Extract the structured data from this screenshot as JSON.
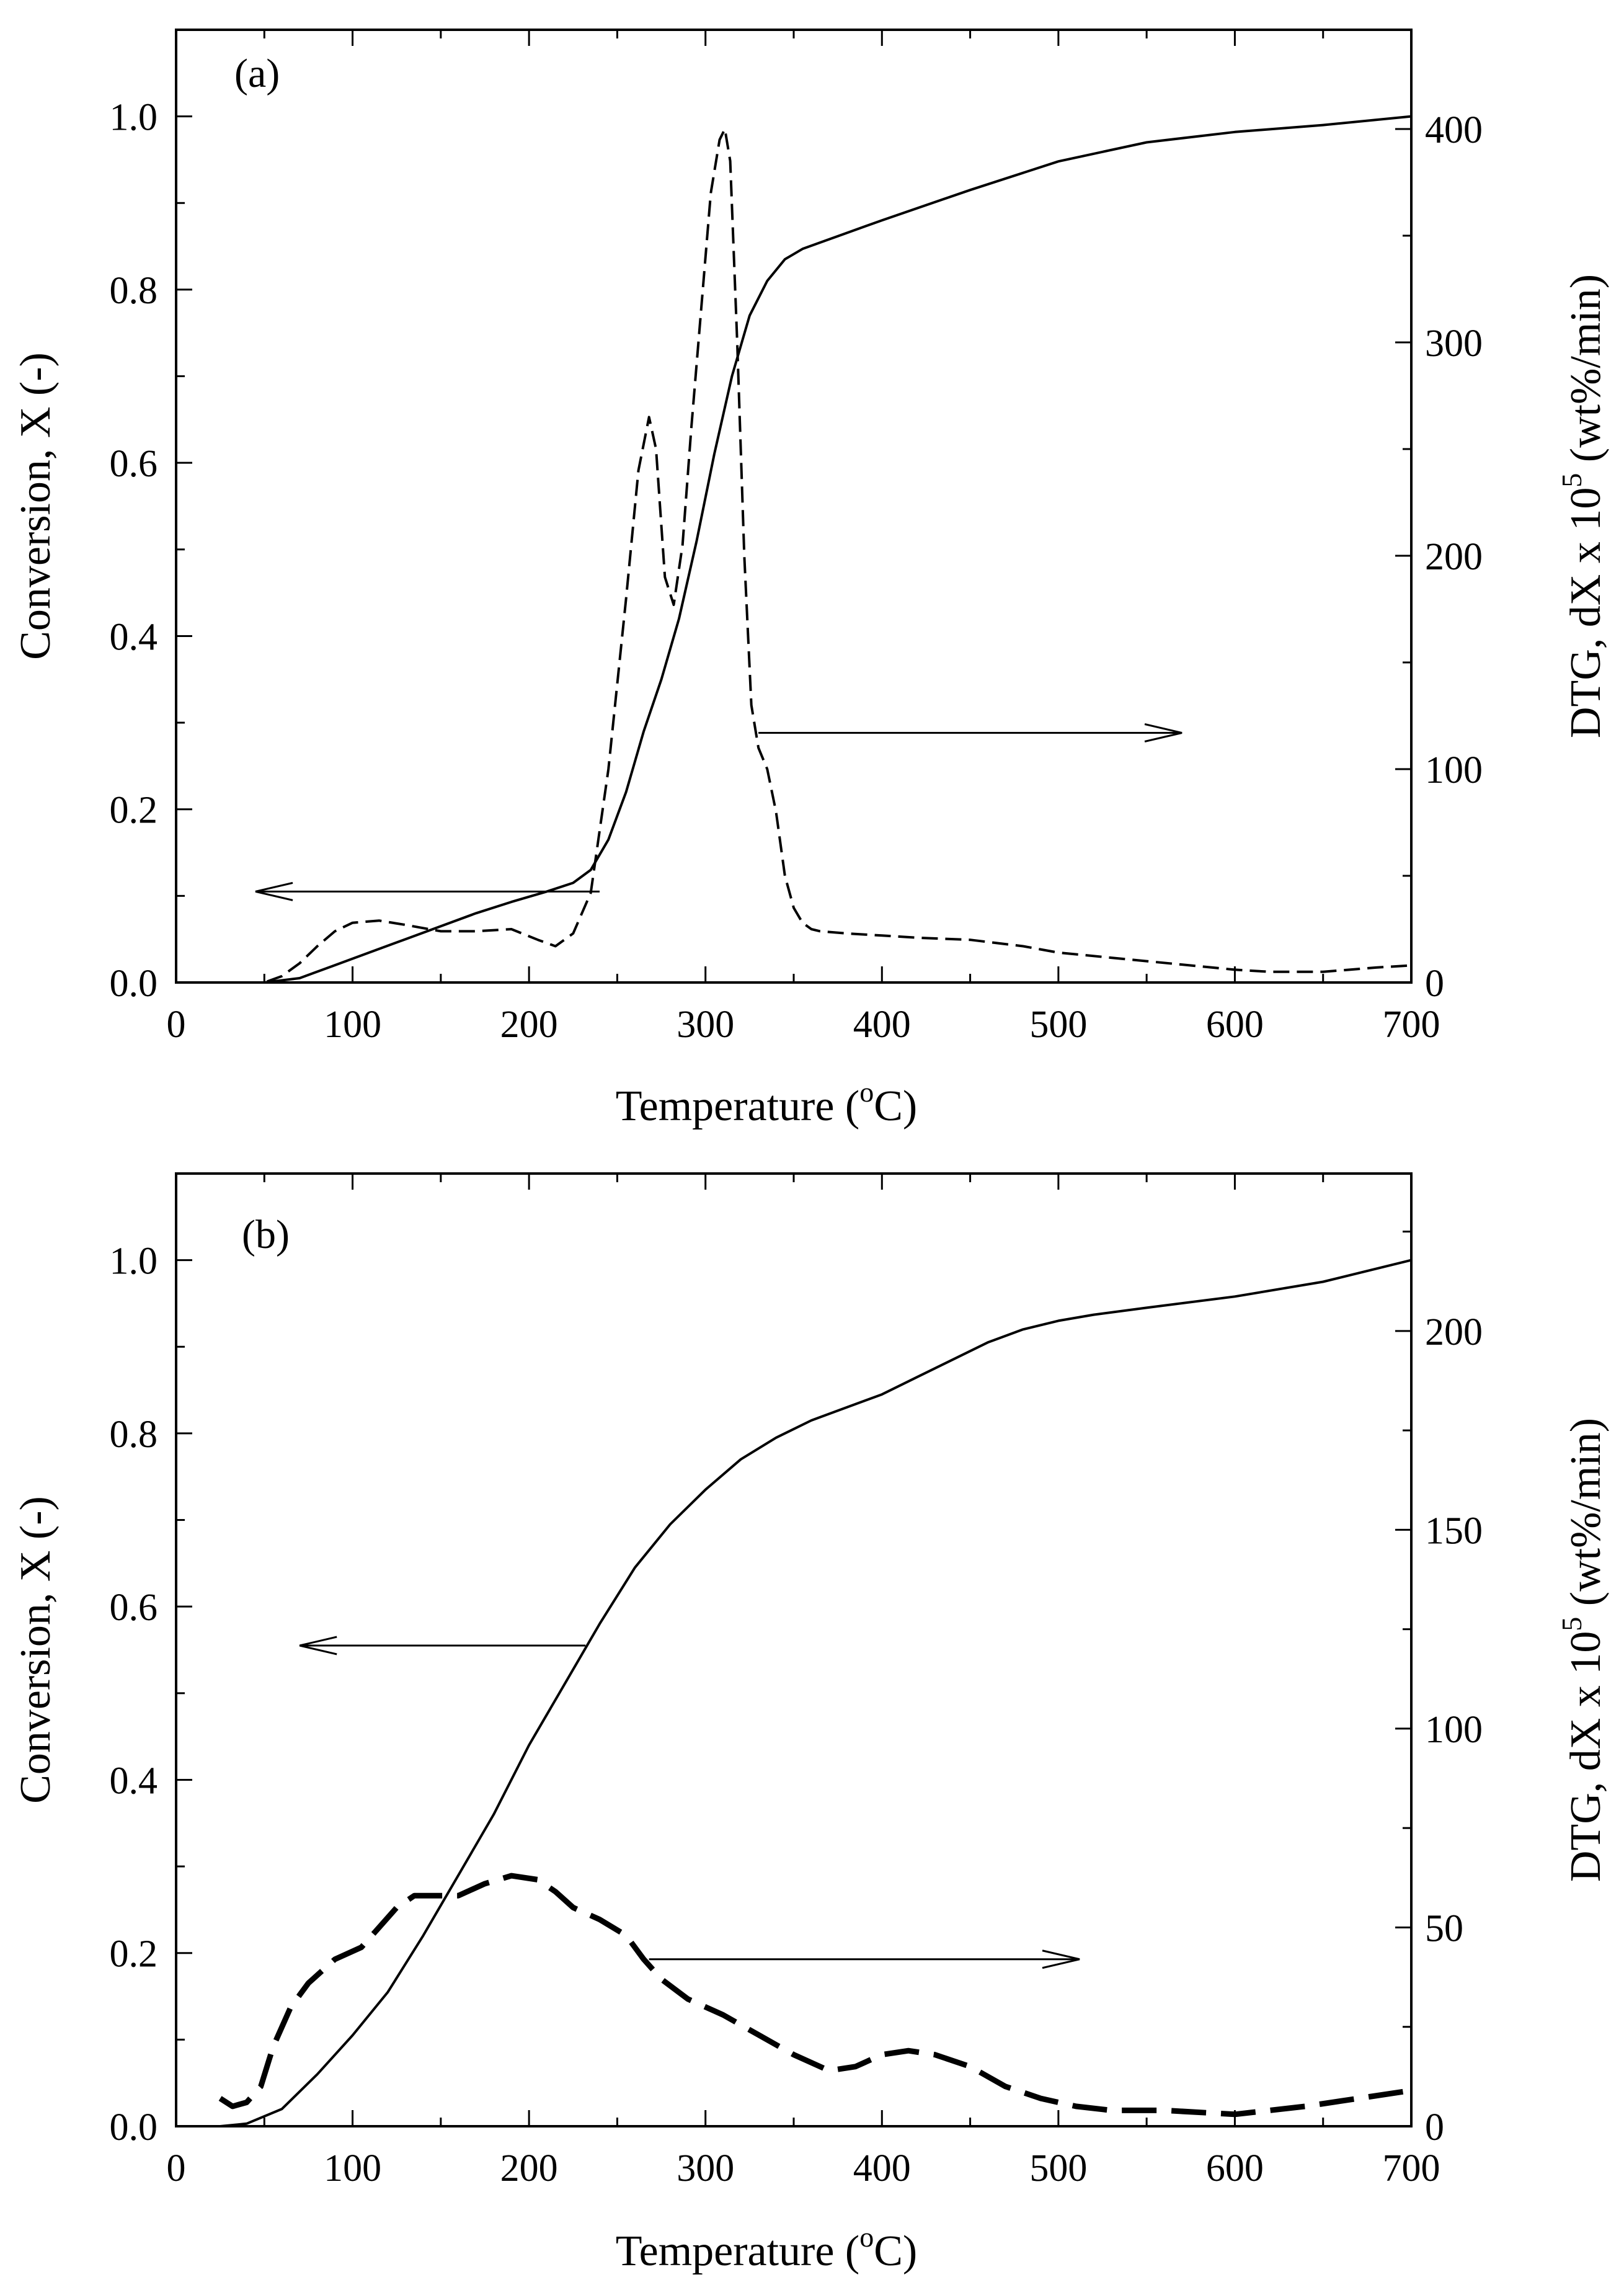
{
  "chart_data": [
    {
      "type": "line",
      "panel_label": "(a)",
      "xlabel": "Temperature (",
      "xlabel_sup": "o",
      "xlabel_end": "C)",
      "ylabel": "Conversion, X (-)",
      "y2label": "DTG, dX x 10",
      "y2label_sup": "5",
      "y2label_end": " (wt%/min)",
      "xlim": [
        0,
        700
      ],
      "ylim": [
        0,
        1.1
      ],
      "y2lim": [
        0,
        446.5
      ],
      "xticks": [
        0,
        100,
        200,
        300,
        400,
        500,
        600,
        700
      ],
      "yticks": [
        0.0,
        0.2,
        0.4,
        0.6,
        0.8,
        1.0
      ],
      "ytick_labels": [
        "0.0",
        "0.2",
        "0.4",
        "0.6",
        "0.8",
        "1.0"
      ],
      "y2ticks": [
        0,
        100,
        200,
        300,
        400
      ],
      "series": [
        {
          "name": "Conversion",
          "axis": "left",
          "style": "solid",
          "x": [
            25,
            50,
            70,
            90,
            110,
            130,
            150,
            170,
            190,
            210,
            225,
            235,
            245,
            255,
            265,
            275,
            285,
            295,
            305,
            315,
            325,
            335,
            345,
            355,
            370,
            400,
            450,
            500,
            550,
            600,
            650,
            700
          ],
          "y": [
            0.0,
            0.0,
            0.005,
            0.02,
            0.035,
            0.05,
            0.065,
            0.08,
            0.093,
            0.105,
            0.115,
            0.13,
            0.165,
            0.22,
            0.29,
            0.35,
            0.42,
            0.51,
            0.61,
            0.7,
            0.77,
            0.81,
            0.835,
            0.847,
            0.858,
            0.88,
            0.915,
            0.948,
            0.97,
            0.982,
            0.99,
            1.0
          ]
        },
        {
          "name": "DTG",
          "axis": "right",
          "style": "dashed",
          "x": [
            25,
            50,
            60,
            70,
            80,
            90,
            100,
            115,
            130,
            150,
            170,
            190,
            205,
            215,
            225,
            235,
            245,
            255,
            262,
            268,
            272,
            277,
            282,
            287,
            292,
            297,
            303,
            308,
            311,
            314,
            318,
            322,
            326,
            330,
            335,
            340,
            345,
            350,
            355,
            360,
            365,
            380,
            400,
            420,
            450,
            480,
            500,
            550,
            600,
            620,
            650,
            680,
            700
          ],
          "y": [
            0,
            0,
            3,
            9,
            17,
            24,
            28,
            29,
            27,
            24,
            24,
            25,
            20,
            17,
            23,
            42,
            100,
            180,
            240,
            265,
            250,
            190,
            177,
            205,
            260,
            310,
            370,
            395,
            400,
            385,
            300,
            200,
            130,
            110,
            100,
            80,
            50,
            35,
            28,
            25,
            24,
            23,
            22,
            21,
            20,
            17,
            14,
            10,
            6,
            5,
            5,
            7,
            8
          ]
        }
      ],
      "annotations": [
        {
          "type": "arrow",
          "direction": "left",
          "from_x": 240,
          "to_x": 45,
          "y": 0.105,
          "axis": "left",
          "points_to": "Conversion axis"
        },
        {
          "type": "arrow",
          "direction": "right",
          "from_x": 330,
          "to_x": 570,
          "y": 117,
          "axis": "right",
          "points_to": "DTG axis"
        }
      ]
    },
    {
      "type": "line",
      "panel_label": "(b)",
      "xlabel": "Temperature (",
      "xlabel_sup": "o",
      "xlabel_end": "C)",
      "ylabel": "Conversion, X (-)",
      "y2label": "DTG, dX x 10",
      "y2label_sup": "5",
      "y2label_end": " (wt%/min)",
      "xlim": [
        0,
        700
      ],
      "ylim": [
        0,
        1.1
      ],
      "y2lim": [
        0,
        239.6
      ],
      "xticks": [
        0,
        100,
        200,
        300,
        400,
        500,
        600,
        700
      ],
      "yticks": [
        0.0,
        0.2,
        0.4,
        0.6,
        0.8,
        1.0
      ],
      "ytick_labels": [
        "0.0",
        "0.2",
        "0.4",
        "0.6",
        "0.8",
        "1.0"
      ],
      "y2ticks": [
        0,
        50,
        100,
        150,
        200
      ],
      "series": [
        {
          "name": "Conversion",
          "axis": "left",
          "style": "solid",
          "x": [
            25,
            40,
            60,
            80,
            100,
            120,
            140,
            160,
            180,
            200,
            220,
            240,
            260,
            280,
            300,
            320,
            340,
            360,
            380,
            400,
            420,
            440,
            460,
            480,
            500,
            520,
            550,
            600,
            650,
            700
          ],
          "y": [
            0.0,
            0.003,
            0.02,
            0.06,
            0.105,
            0.155,
            0.22,
            0.29,
            0.36,
            0.44,
            0.51,
            0.58,
            0.645,
            0.695,
            0.735,
            0.77,
            0.795,
            0.815,
            0.83,
            0.845,
            0.865,
            0.885,
            0.905,
            0.92,
            0.93,
            0.937,
            0.945,
            0.958,
            0.975,
            1.0
          ]
        },
        {
          "name": "DTG",
          "axis": "right",
          "style": "dashed-bold",
          "x": [
            25,
            32,
            40,
            48,
            55,
            65,
            75,
            90,
            105,
            115,
            125,
            135,
            145,
            160,
            175,
            190,
            205,
            215,
            225,
            240,
            255,
            265,
            275,
            290,
            310,
            330,
            350,
            370,
            385,
            400,
            415,
            430,
            450,
            470,
            490,
            510,
            530,
            560,
            600,
            640,
            670,
            700
          ],
          "y": [
            7,
            5,
            6,
            10,
            20,
            30,
            36,
            42,
            45,
            50,
            55,
            58,
            58,
            58,
            61,
            63,
            62,
            59,
            55,
            52,
            48,
            42,
            37,
            32,
            28,
            23,
            18,
            14,
            15,
            18,
            19,
            18,
            15,
            10,
            7,
            5,
            4,
            4,
            3,
            5,
            7,
            9
          ]
        }
      ],
      "annotations": [
        {
          "type": "arrow",
          "direction": "left",
          "from_x": 232,
          "to_x": 70,
          "y": 0.555,
          "axis": "left",
          "points_to": "Conversion axis"
        },
        {
          "type": "arrow",
          "direction": "right",
          "from_x": 268,
          "to_x": 512,
          "y": 42,
          "axis": "right",
          "points_to": "DTG axis"
        }
      ]
    }
  ]
}
